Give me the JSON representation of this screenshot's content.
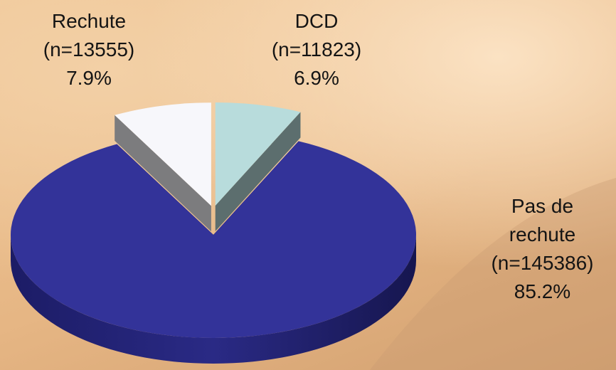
{
  "chart_data": {
    "type": "pie",
    "categories": [
      "Rechute",
      "DCD",
      "Pas de rechute"
    ],
    "count_labels": [
      "(n=13555)",
      "(n=11823)",
      "(n=145386)"
    ],
    "values": [
      7.9,
      6.9,
      85.2
    ],
    "value_labels": [
      "7.9%",
      "6.9%",
      "85.2%"
    ],
    "colors": [
      "#f7f7fb",
      "#b8dcdc",
      "#333399"
    ]
  }
}
